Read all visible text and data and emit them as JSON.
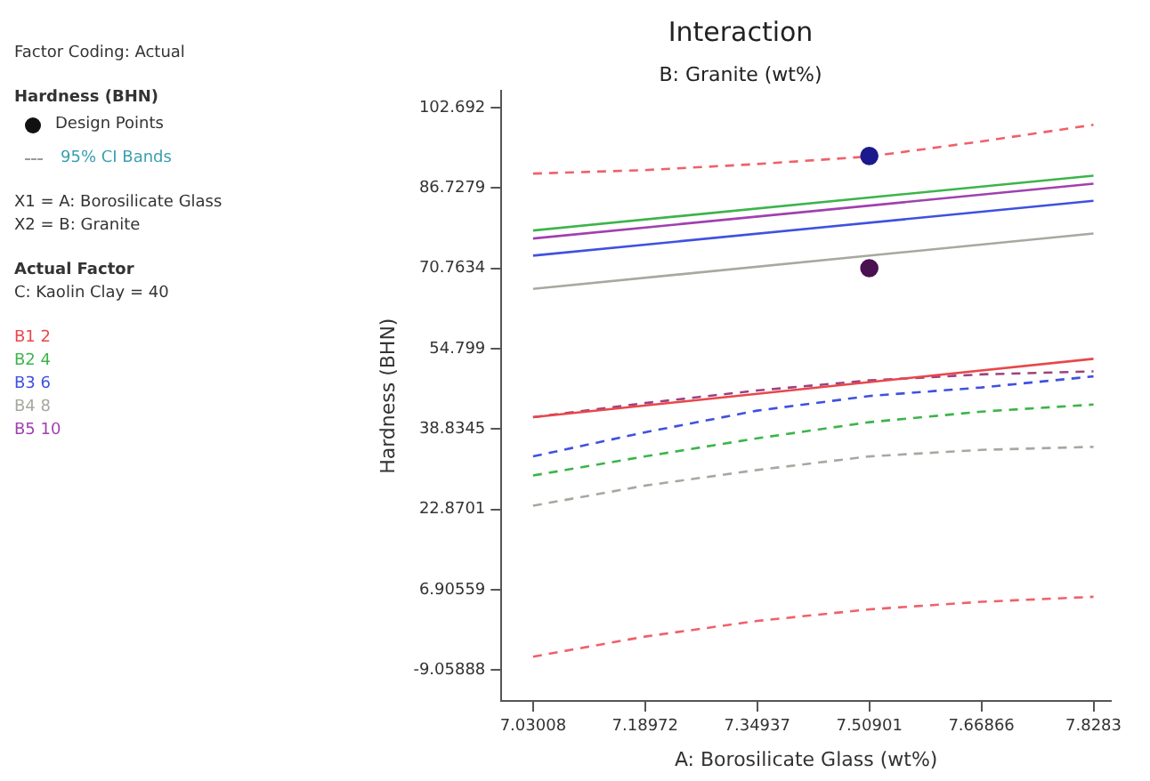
{
  "chart_data": {
    "type": "line",
    "title": "Interaction",
    "subtitle": "B: Granite (wt%)",
    "xlabel": "A: Borosilicate Glass (wt%)",
    "ylabel": "Hardness (BHN)",
    "legend_title": "Hardness (BHN)",
    "legend": "left",
    "grid": false,
    "annotations": [
      "Factor Coding: Actual",
      "95% CI Bands",
      "X1 = A: Borosilicate Glass",
      "X2 = B: Granite",
      "Actual Factor",
      "C: Kaolin Clay = 40"
    ],
    "xlim": [
      6.985,
      7.853
    ],
    "xticks": [
      7.03008,
      7.18972,
      7.34937,
      7.50901,
      7.66866,
      7.8283
    ],
    "ylim": [
      -15.2,
      106
    ],
    "yticks": [
      -9.05888,
      6.90559,
      22.8701,
      38.8345,
      54.799,
      70.7634,
      86.7279,
      102.692
    ],
    "series": [
      {
        "name": "Design Points",
        "type": "scatter",
        "marker": "circle",
        "color": "#111111",
        "colors": [
          "#1a1a8c",
          "#4a1050"
        ],
        "x": [
          7.50901,
          7.50901
        ],
        "values": [
          93.1,
          70.8
        ]
      },
      {
        "name": "B1 2",
        "marker": "none",
        "line_style": "solid",
        "color": "#e8474a",
        "x": [
          7.03008,
          7.8283
        ],
        "values": [
          41.2,
          52.8
        ]
      },
      {
        "name": "B2 4",
        "marker": "none",
        "line_style": "solid",
        "color": "#3cb44b",
        "x": [
          7.03008,
          7.8283
        ],
        "values": [
          78.3,
          89.2
        ]
      },
      {
        "name": "B3 6",
        "marker": "none",
        "line_style": "solid",
        "color": "#3f51e0",
        "x": [
          7.03008,
          7.8283
        ],
        "values": [
          73.3,
          84.2
        ]
      },
      {
        "name": "B4 8",
        "marker": "none",
        "line_style": "solid",
        "color": "#a8a8a0",
        "x": [
          7.03008,
          7.8283
        ],
        "values": [
          66.7,
          77.7
        ]
      },
      {
        "name": "B5 10",
        "marker": "none",
        "line_style": "solid",
        "color": "#a040b0",
        "x": [
          7.03008,
          7.8283
        ],
        "values": [
          76.7,
          87.6
        ]
      },
      {
        "marker": "none",
        "line_style": "dashed",
        "color": "#f0606a",
        "x": [
          7.03008,
          7.18972,
          7.34937,
          7.50901,
          7.66866,
          7.8283
        ],
        "values": [
          89.6,
          90.3,
          91.5,
          93.0,
          96.0,
          99.3
        ]
      },
      {
        "marker": "none",
        "line_style": "dashed",
        "color": "#f0606a",
        "x": [
          7.03008,
          7.18972,
          7.34937,
          7.50901,
          7.66866,
          7.8283
        ],
        "values": [
          -6.4,
          -2.4,
          0.7,
          3.0,
          4.5,
          5.5
        ]
      },
      {
        "marker": "none",
        "line_style": "dashed",
        "color": "#a04080",
        "x": [
          7.03008,
          7.18972,
          7.34937,
          7.50901,
          7.66866,
          7.8283
        ],
        "values": [
          41.2,
          44.0,
          46.5,
          48.5,
          49.7,
          50.3
        ]
      },
      {
        "marker": "none",
        "line_style": "dashed",
        "color": "#3f51e0",
        "x": [
          7.03008,
          7.18972,
          7.34937,
          7.50901,
          7.66866,
          7.8283
        ],
        "values": [
          33.4,
          38.2,
          42.5,
          45.4,
          47.1,
          49.3
        ]
      },
      {
        "marker": "none",
        "line_style": "dashed",
        "color": "#3cb44b",
        "x": [
          7.03008,
          7.18972,
          7.34937,
          7.50901,
          7.66866,
          7.8283
        ],
        "values": [
          29.6,
          33.4,
          37.0,
          40.2,
          42.3,
          43.7
        ]
      },
      {
        "marker": "none",
        "line_style": "dashed",
        "color": "#a8a8a0",
        "x": [
          7.03008,
          7.18972,
          7.34937,
          7.50901,
          7.66866,
          7.8283
        ],
        "values": [
          23.6,
          27.6,
          30.7,
          33.4,
          34.7,
          35.3
        ]
      }
    ]
  }
}
